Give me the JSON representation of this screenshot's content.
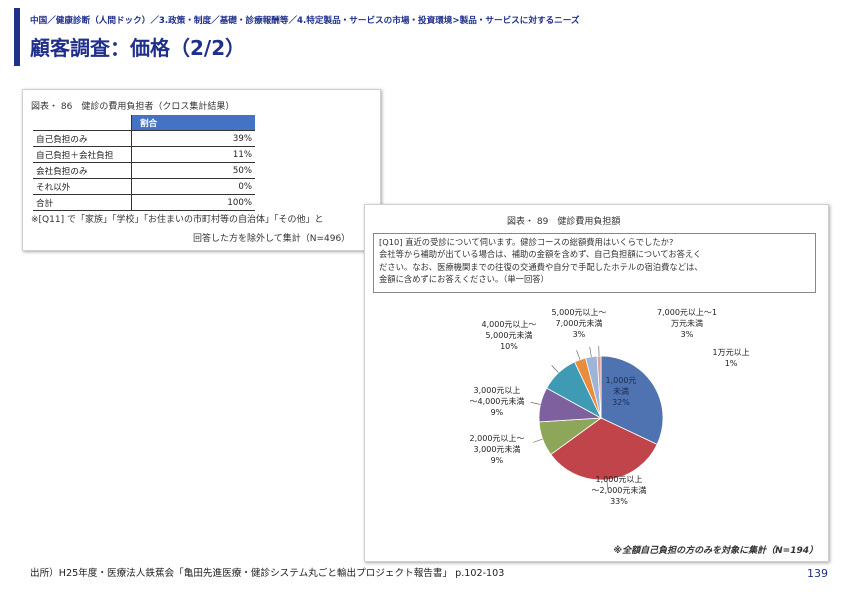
{
  "header": {
    "breadcrumb": "中国／健康診断（人間ドック）／3.政策・制度／基礎・診療報酬等／4.特定製品・サービスの市場・投資環境>製品・サービスに対するニーズ",
    "title": "顧客調査：価格（2/2）"
  },
  "figure1": {
    "caption": "図表・ 86　健診の費用負担者（クロス集計結果）",
    "column_header": "割合",
    "rows": [
      {
        "label": "自己負担のみ",
        "value": "39%"
      },
      {
        "label": "自己負担＋会社負担",
        "value": "11%"
      },
      {
        "label": "会社負担のみ",
        "value": "50%"
      },
      {
        "label": "それ以外",
        "value": "0%"
      },
      {
        "label": "合計",
        "value": "100%"
      }
    ],
    "note_line1": "※[Q11] で「家族」「学校」「お住まいの市町村等の自治体」「その他」と",
    "note_line2": "回答した方を除外して集計（N=496）"
  },
  "figure2": {
    "caption": "図表・ 89　健診費用負担額",
    "question_lines": [
      "[Q10] 直近の受診について伺います。健診コースの総額費用はいくらでしたか?",
      "会社等から補助が出ている場合は、補助の金額を含めず、自己負担額についてお答えく",
      "ださい。なお、医療機関までの往復の交通費や自分で手配したホテルの宿泊費などは、",
      "金額に含めずにお答えください。（単一回答）"
    ],
    "note": "※全額自己負担の方のみを対象に集計（N=194）"
  },
  "chart_data": {
    "type": "pie",
    "slices": [
      {
        "label": "1,000元\n未満",
        "value": 32,
        "display": "32%",
        "color": "#4f73b1"
      },
      {
        "label": "1,000元以上\n～2,000元未満",
        "value": 33,
        "display": "33%",
        "color": "#c0444a"
      },
      {
        "label": "2,000元以上～\n3,000元未満",
        "value": 9,
        "display": "9%",
        "color": "#8ea65a"
      },
      {
        "label": "3,000元以上\n～4,000元未満",
        "value": 9,
        "display": "9%",
        "color": "#7d609d"
      },
      {
        "label": "4,000元以上～\n5,000元未満",
        "value": 10,
        "display": "10%",
        "color": "#3f9bb3"
      },
      {
        "label": "5,000元以上～\n7,000元未満",
        "value": 3,
        "display": "3%",
        "color": "#e98c3e"
      },
      {
        "label": "7,000元以上～1\n万元未満",
        "value": 3,
        "display": "3%",
        "color": "#9fb5d8"
      },
      {
        "label": "1万元以上",
        "value": 1,
        "display": "1%",
        "color": "#dc9e9c"
      }
    ]
  },
  "footer": {
    "source": "出所）H25年度・医療法人鉄蕉会「亀田先進医療・健診システム丸ごと輸出プロジェクト報告書」 p.102-103",
    "page_number": "139"
  }
}
